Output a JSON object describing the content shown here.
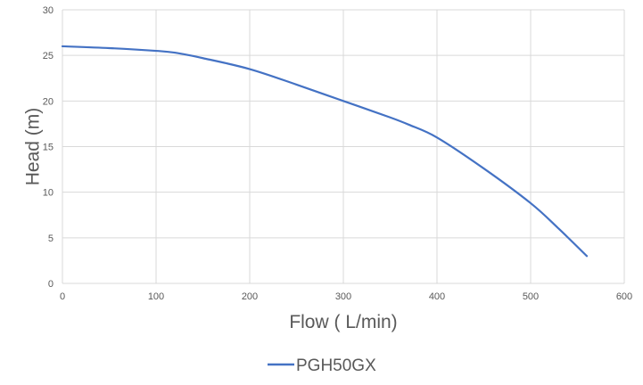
{
  "chart_data": {
    "type": "line",
    "title": "",
    "xlabel": "Flow ( L/min)",
    "ylabel": "Head (m)",
    "xlim": [
      0,
      600
    ],
    "ylim": [
      0,
      30
    ],
    "xticks": [
      "0",
      "100",
      "200",
      "300",
      "400",
      "500",
      "600"
    ],
    "yticks": [
      "0",
      "5",
      "10",
      "15",
      "20",
      "25",
      "30"
    ],
    "grid": true,
    "legend_position": "bottom",
    "series": [
      {
        "name": "PGH50GX",
        "color": "#4472C4",
        "x": [
          0,
          50,
          100,
          120,
          150,
          200,
          250,
          300,
          350,
          370,
          400,
          450,
          500,
          530,
          560
        ],
        "y": [
          26,
          25.8,
          25.5,
          25.3,
          24.7,
          23.5,
          21.8,
          20,
          18.2,
          17.4,
          16,
          12.6,
          8.8,
          6,
          3
        ]
      }
    ]
  }
}
